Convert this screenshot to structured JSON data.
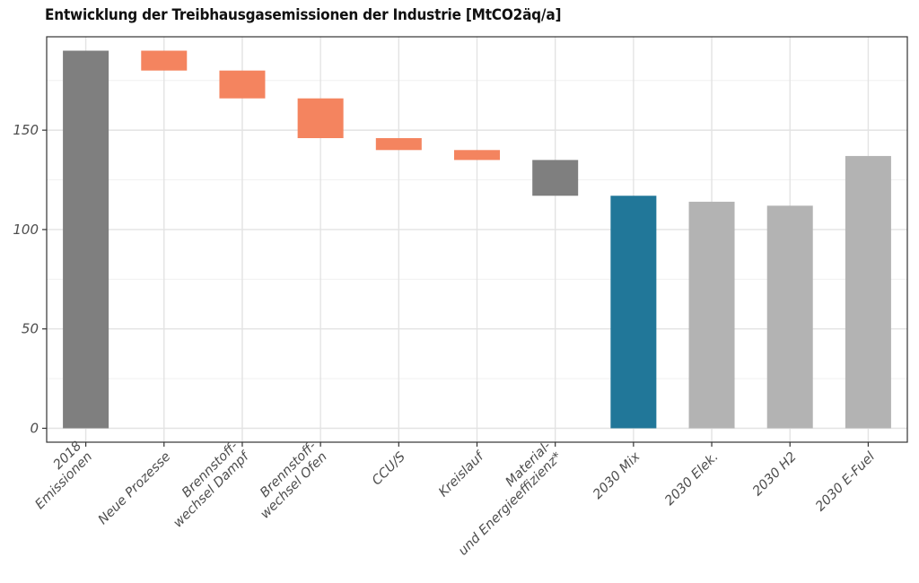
{
  "chart_data": {
    "type": "bar",
    "subtype": "waterfall",
    "title": "Entwicklung der Treibhausgasemissionen der Industrie [MtCO2äq/a]",
    "xlabel": "",
    "ylabel": "",
    "ylim": [
      -7,
      197
    ],
    "yticks": [
      0,
      50,
      100,
      150
    ],
    "grid": true,
    "categories": [
      [
        "2018",
        "Emissionen"
      ],
      [
        "Neue Prozesse"
      ],
      [
        "Brennstoff-",
        "wechsel Dampf"
      ],
      [
        "Brennstoff-",
        "wechsel Ofen"
      ],
      [
        "CCU/S"
      ],
      [
        "Kreislauf"
      ],
      [
        "Material-",
        "und Energieeffizienz*"
      ],
      [
        "2030 Mix"
      ],
      [
        "2030 Elek."
      ],
      [
        "2030 H2"
      ],
      [
        "2030 E-Fuel"
      ]
    ],
    "bars": [
      {
        "start": 0,
        "end": 190,
        "color": "#7f7f7f"
      },
      {
        "start": 180,
        "end": 190,
        "color": "#f4845f"
      },
      {
        "start": 166,
        "end": 180,
        "color": "#f4845f"
      },
      {
        "start": 146,
        "end": 166,
        "color": "#f4845f"
      },
      {
        "start": 140,
        "end": 146,
        "color": "#f4845f"
      },
      {
        "start": 135,
        "end": 140,
        "color": "#f4845f"
      },
      {
        "start": 117,
        "end": 135,
        "color": "#7f7f7f"
      },
      {
        "start": 0,
        "end": 117,
        "color": "#217799"
      },
      {
        "start": 0,
        "end": 114,
        "color": "#b3b3b3"
      },
      {
        "start": 0,
        "end": 112,
        "color": "#b3b3b3"
      },
      {
        "start": 0,
        "end": 137,
        "color": "#b3b3b3"
      }
    ]
  }
}
